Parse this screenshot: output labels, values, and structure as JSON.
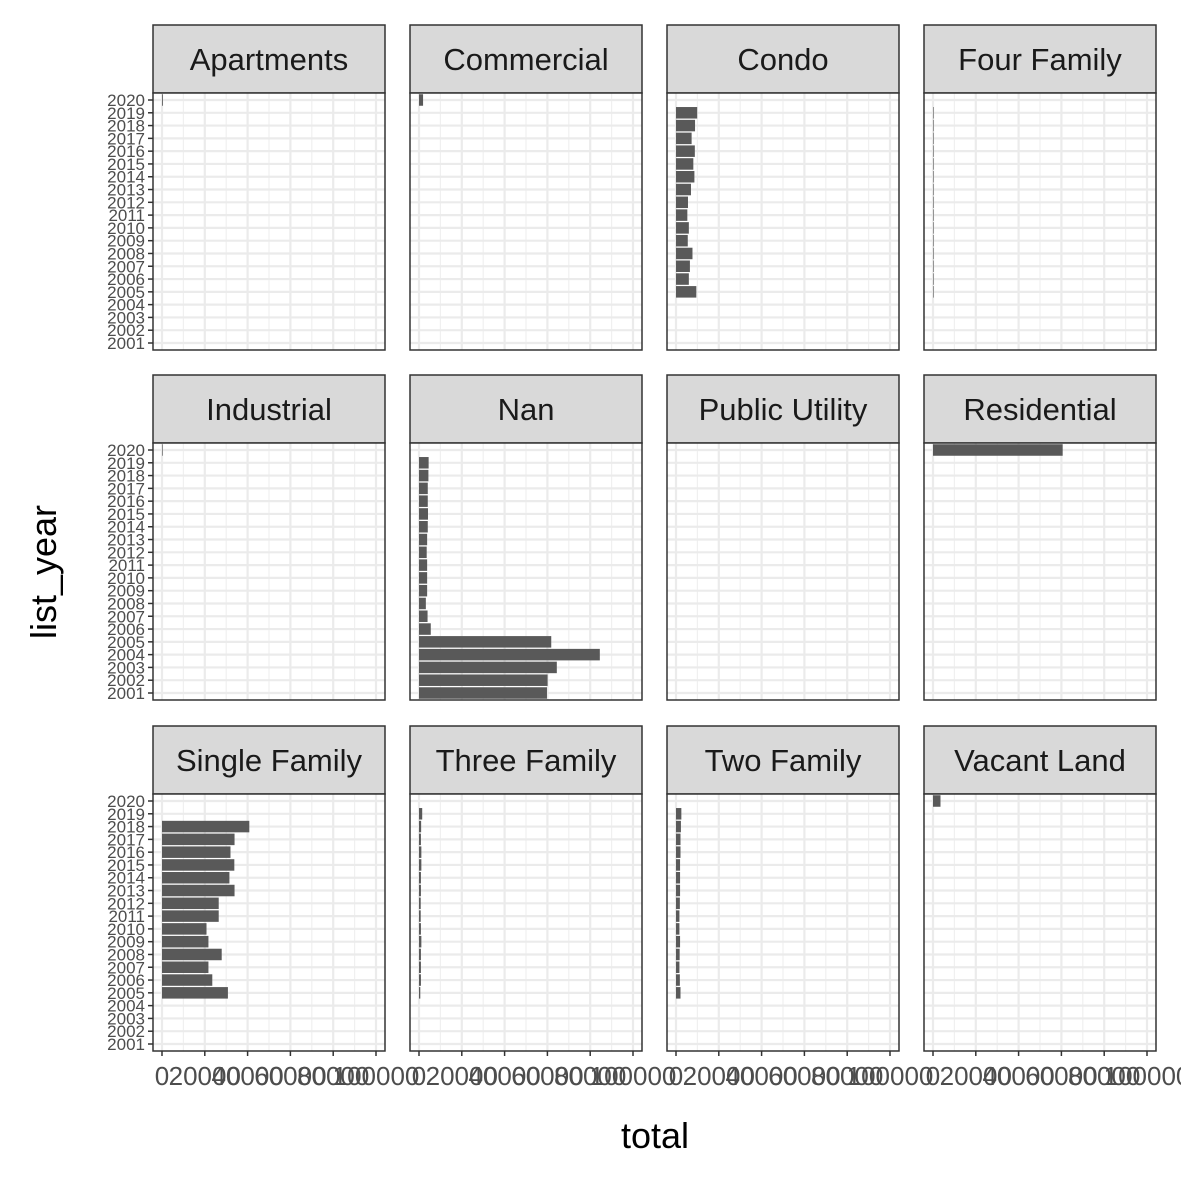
{
  "chart_data": {
    "type": "bar",
    "orientation": "horizontal",
    "facet_layout": {
      "rows": 3,
      "cols": 4
    },
    "xlabel": "total",
    "ylabel": "list_year",
    "xlim": [
      0,
      100000
    ],
    "x_ticks": [
      0,
      20000,
      40000,
      60000,
      80000,
      100000
    ],
    "x_tick_labels": [
      "0",
      "20000",
      "40000",
      "60000",
      "80000",
      "100000"
    ],
    "years": [
      2001,
      2002,
      2003,
      2004,
      2005,
      2006,
      2007,
      2008,
      2009,
      2010,
      2011,
      2012,
      2013,
      2014,
      2015,
      2016,
      2017,
      2018,
      2019,
      2020
    ],
    "y_tick_labels": [
      "2001",
      "2002",
      "2003",
      "2004",
      "2005",
      "2006",
      "2007",
      "2008",
      "2009",
      "2010",
      "2011",
      "2012",
      "2013",
      "2014",
      "2015",
      "2016",
      "2017",
      "2018",
      "2019",
      "2020"
    ],
    "grid": true,
    "bar_color": "#595959",
    "panels": [
      {
        "name": "Apartments",
        "values": [
          0,
          0,
          0,
          0,
          0,
          0,
          0,
          0,
          0,
          0,
          0,
          0,
          0,
          0,
          0,
          0,
          0,
          0,
          0,
          400
        ]
      },
      {
        "name": "Commercial",
        "values": [
          0,
          0,
          0,
          0,
          0,
          0,
          0,
          0,
          0,
          0,
          0,
          0,
          0,
          0,
          0,
          0,
          0,
          0,
          0,
          1900
        ]
      },
      {
        "name": "Condo",
        "values": [
          0,
          0,
          0,
          0,
          9500,
          6000,
          6500,
          7700,
          5500,
          6000,
          5300,
          5600,
          7000,
          8600,
          8100,
          8800,
          7300,
          8900,
          9900,
          0
        ]
      },
      {
        "name": "Four Family",
        "values": [
          0,
          0,
          0,
          0,
          200,
          200,
          200,
          200,
          200,
          200,
          200,
          200,
          200,
          200,
          200,
          200,
          200,
          200,
          200,
          0
        ]
      },
      {
        "name": "Industrial",
        "values": [
          0,
          0,
          0,
          0,
          0,
          0,
          0,
          0,
          0,
          0,
          0,
          0,
          0,
          0,
          0,
          0,
          0,
          0,
          0,
          300
        ]
      },
      {
        "name": "Nan",
        "values": [
          59800,
          60100,
          64400,
          84500,
          61800,
          5500,
          4000,
          3200,
          3800,
          3800,
          3800,
          3600,
          3800,
          4100,
          4200,
          4100,
          4100,
          4400,
          4500,
          0
        ]
      },
      {
        "name": "Public Utility",
        "values": [
          0,
          0,
          0,
          0,
          0,
          0,
          0,
          0,
          0,
          0,
          0,
          0,
          0,
          0,
          0,
          0,
          0,
          0,
          0,
          0
        ]
      },
      {
        "name": "Residential",
        "values": [
          0,
          0,
          0,
          0,
          0,
          0,
          0,
          0,
          0,
          0,
          0,
          0,
          0,
          0,
          0,
          0,
          0,
          0,
          0,
          60600
        ]
      },
      {
        "name": "Single Family",
        "values": [
          0,
          0,
          0,
          0,
          30800,
          23500,
          21700,
          27900,
          21700,
          20800,
          26500,
          26500,
          33900,
          31500,
          33800,
          32000,
          33900,
          40800,
          0,
          0
        ]
      },
      {
        "name": "Three Family",
        "values": [
          0,
          0,
          0,
          0,
          600,
          900,
          900,
          900,
          1100,
          900,
          800,
          800,
          900,
          900,
          1100,
          1100,
          900,
          1000,
          1500,
          0
        ]
      },
      {
        "name": "Two Family",
        "values": [
          0,
          0,
          0,
          0,
          2100,
          1800,
          1600,
          1700,
          1900,
          1600,
          1600,
          1800,
          1900,
          1900,
          1900,
          2100,
          2100,
          2300,
          2500,
          0
        ]
      },
      {
        "name": "Vacant Land",
        "values": [
          0,
          0,
          0,
          0,
          0,
          0,
          0,
          0,
          0,
          0,
          0,
          0,
          0,
          0,
          0,
          0,
          0,
          0,
          0,
          3500
        ]
      }
    ]
  }
}
